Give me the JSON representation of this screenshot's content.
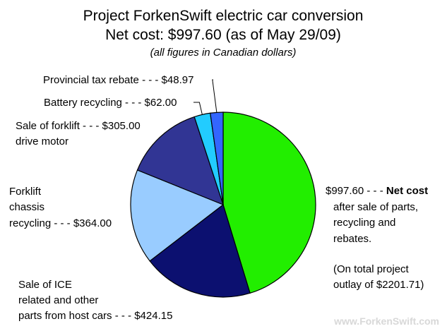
{
  "chart_data": {
    "type": "pie",
    "title": "Project ForkenSwift electric car conversion",
    "title_line2": "Net cost: $997.60 (as of May 29/09)",
    "subtitle": "(all figures in Canadian dollars)",
    "slices": [
      {
        "value": 997.6,
        "color": "#22ee00",
        "label_lines": [
          "$997.60 - - -",
          "after sale of parts,",
          "recycling and",
          "rebates."
        ],
        "label_bold": "Net cost",
        "note_lines": [
          "(On total project",
          "outlay of $2201.71)"
        ]
      },
      {
        "value": 424.15,
        "color": "#0c1070",
        "label_lines": [
          "Sale of ICE",
          "related and other",
          "parts from host cars - - - $424.15"
        ]
      },
      {
        "value": 364.0,
        "color": "#99ccff",
        "label_lines": [
          "Forklift",
          "chassis",
          "recycling - - -  $364.00"
        ]
      },
      {
        "value": 305.0,
        "color": "#313594",
        "label_lines": [
          "Sale of forklift - - - $305.00",
          "drive motor"
        ]
      },
      {
        "value": 62.0,
        "color": "#22ccff",
        "label_lines": [
          "Battery recycling - - - $62.00"
        ]
      },
      {
        "value": 48.97,
        "color": "#3366ff",
        "label_lines": [
          "Provincial tax rebate - - - $48.97"
        ]
      }
    ],
    "total": 2201.71,
    "start_direction": "12 o'clock",
    "direction": "clockwise",
    "legend": "none"
  },
  "watermark": "www.ForkenSwift.com"
}
